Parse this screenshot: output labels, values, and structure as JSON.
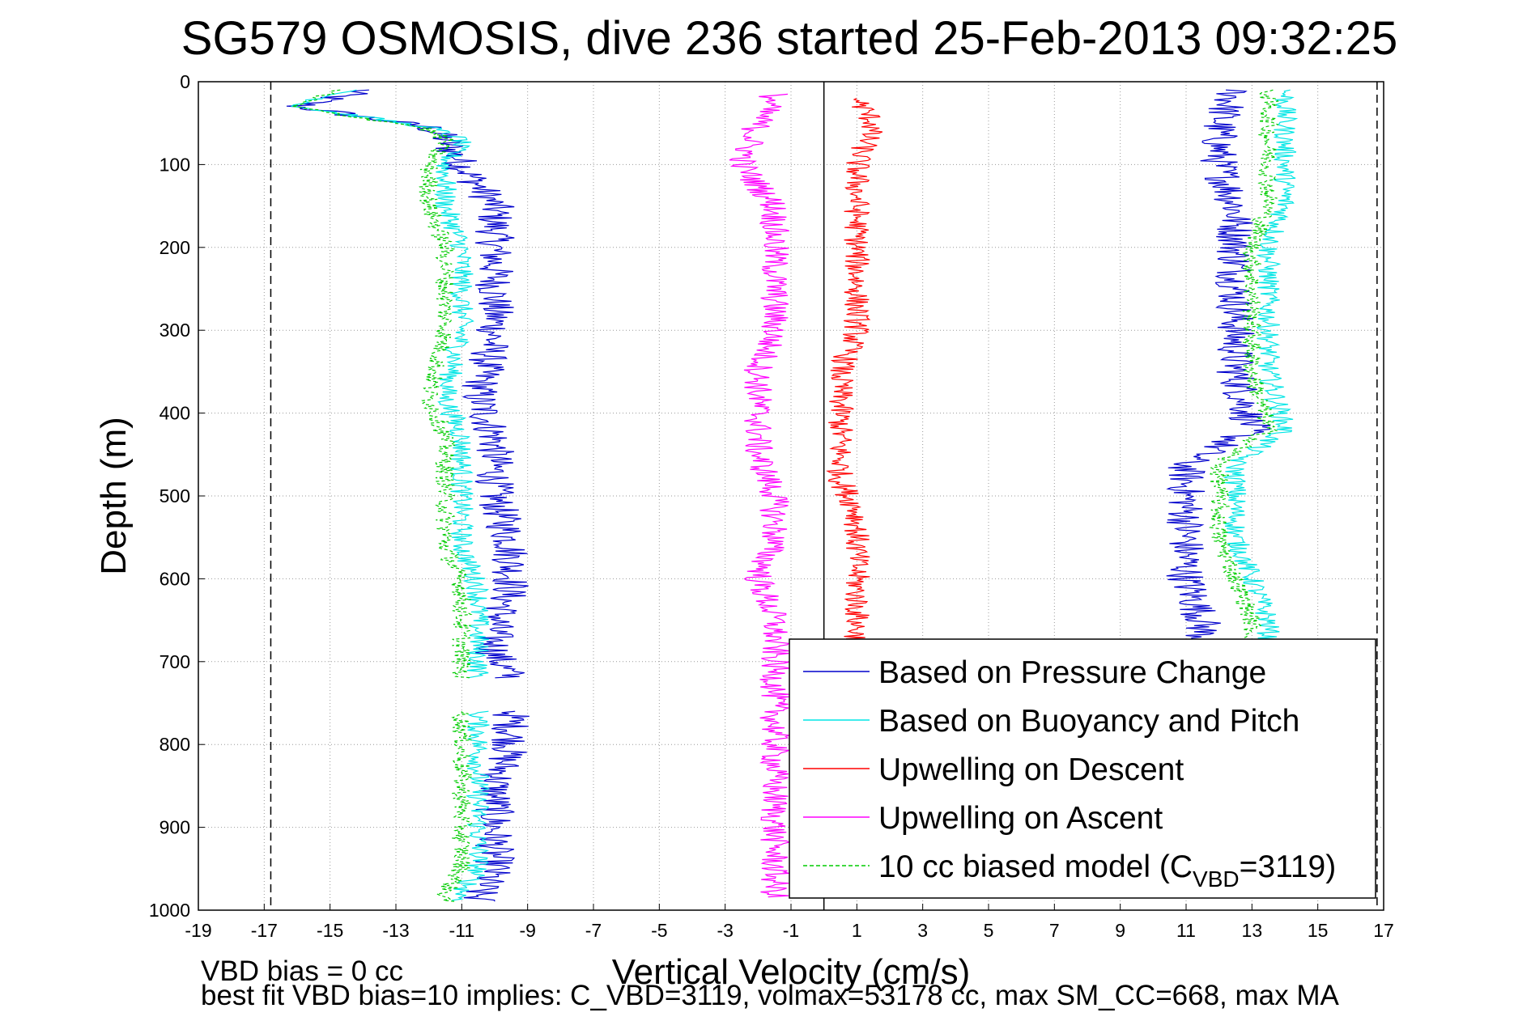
{
  "chart_data": {
    "type": "line",
    "title": "SG579 OSMOSIS, dive 236 started 25-Feb-2013 09:32:25",
    "xlabel": "Vertical Velocity (cm/s)",
    "ylabel": "Depth (m)",
    "xlim": [
      -19,
      17
    ],
    "ylim": [
      0,
      1000
    ],
    "y_reversed": true,
    "grid": true,
    "legend_position": "bottom-right",
    "x_ticks": [
      "-19",
      "-17",
      "-15",
      "-13",
      "-11",
      "-9",
      "-7",
      "-5",
      "-3",
      "-1",
      "1",
      "3",
      "5",
      "7",
      "9",
      "11",
      "13",
      "15",
      "17"
    ],
    "y_ticks": [
      "0",
      "100",
      "200",
      "300",
      "400",
      "500",
      "600",
      "700",
      "800",
      "900",
      "1000"
    ],
    "reference_lines": [
      {
        "x": -16.8,
        "style": "dashed",
        "color": "#000000"
      },
      {
        "x": 0,
        "style": "solid",
        "color": "#000000"
      },
      {
        "x": 16.8,
        "style": "dashed",
        "color": "#000000"
      }
    ],
    "series": [
      {
        "name": "Based on Pressure Change",
        "color": "#0000cc",
        "style": "solid",
        "noise": 0.6,
        "segments": [
          {
            "x": [
              -14,
              -16,
              -12,
              -11.5,
              -11,
              -10,
              -10,
              -10,
              -10,
              -10.5,
              -10,
              -10,
              -9.5,
              -9.5,
              -10,
              -10,
              -9.5
            ],
            "y": [
              10,
              30,
              55,
              70,
              100,
              150,
              200,
              250,
              300,
              380,
              430,
              500,
              560,
              610,
              660,
              690,
              720
            ]
          },
          {
            "x": [
              -9.5,
              -9.5,
              -10,
              -10,
              -10,
              -10.5,
              -10.5
            ],
            "y": [
              760,
              800,
              850,
              900,
              950,
              980,
              990
            ]
          },
          {
            "x": [
              12.5,
              12,
              12,
              12.5,
              12.5,
              12.5,
              12.5,
              12.5,
              12.5,
              13,
              11,
              11,
              11,
              11,
              11.5,
              11.5,
              11.5,
              11.5,
              11.5,
              11.5,
              11.5
            ],
            "y": [
              10,
              50,
              100,
              150,
              200,
              250,
              270,
              300,
              350,
              420,
              460,
              500,
              550,
              600,
              650,
              700,
              750,
              800,
              850,
              900,
              960
            ]
          }
        ]
      },
      {
        "name": "Based on Buoyancy and Pitch",
        "color": "#00e5e5",
        "style": "solid",
        "noise": 0.35,
        "segments": [
          {
            "x": [
              -14.5,
              -16,
              -12,
              -11,
              -11.5,
              -11.5,
              -11,
              -11,
              -11,
              -11.5,
              -11,
              -11,
              -11,
              -10.5,
              -10.5,
              -10.5,
              -10.5
            ],
            "y": [
              10,
              30,
              55,
              70,
              100,
              150,
              200,
              250,
              300,
              380,
              430,
              500,
              560,
              610,
              660,
              690,
              720
            ]
          },
          {
            "x": [
              -10.5,
              -10.5,
              -10.5,
              -10.5,
              -10.5,
              -11,
              -11
            ],
            "y": [
              760,
              800,
              850,
              900,
              950,
              980,
              990
            ]
          },
          {
            "x": [
              14,
              14,
              14,
              14,
              13.5,
              13.5,
              13.5,
              13.5,
              13.5,
              14,
              12.5,
              12.5,
              12.5,
              13,
              13.5,
              13.5,
              13.5,
              13.5,
              13.5,
              13.5,
              13.5
            ],
            "y": [
              10,
              50,
              100,
              150,
              200,
              250,
              270,
              300,
              350,
              420,
              460,
              500,
              550,
              600,
              650,
              700,
              750,
              800,
              850,
              900,
              960
            ]
          }
        ]
      },
      {
        "name": "Upwelling on Descent",
        "color": "#ff0000",
        "style": "solid",
        "noise": 0.4,
        "segments": [
          {
            "x": [
              1,
              1.5,
              1,
              1,
              1,
              1,
              1,
              0.5,
              0.5,
              0.5,
              0.5,
              1,
              1,
              1,
              1
            ],
            "y": [
              20,
              50,
              100,
              150,
              200,
              250,
              300,
              350,
              400,
              430,
              480,
              520,
              580,
              630,
              680
            ]
          }
        ]
      },
      {
        "name": "Upwelling on Ascent",
        "color": "#ff00ff",
        "style": "solid",
        "noise": 0.45,
        "segments": [
          {
            "x": [
              -1.5,
              -2,
              -2.5,
              -1.5,
              -1.5,
              -1.5,
              -1.5,
              -2,
              -2,
              -2,
              -1.5,
              -1.5,
              -2,
              -1.5,
              -1.5,
              -1.5,
              -1.5,
              -1.5,
              -1.5,
              -1.5,
              -1.5
            ],
            "y": [
              15,
              50,
              100,
              150,
              200,
              250,
              300,
              350,
              400,
              450,
              500,
              550,
              600,
              650,
              700,
              750,
              800,
              850,
              900,
              950,
              985
            ]
          }
        ]
      },
      {
        "name": "10 cc biased model (C_VBD=3119)",
        "color": "#00cc00",
        "style": "dashed",
        "noise": 0.3,
        "segments": [
          {
            "x": [
              -14.8,
              -16.2,
              -12.2,
              -11.5,
              -12,
              -12,
              -11.5,
              -11.5,
              -11.5,
              -12,
              -11.5,
              -11.5,
              -11.5,
              -11,
              -11,
              -11,
              -11
            ],
            "y": [
              10,
              30,
              55,
              70,
              100,
              150,
              200,
              250,
              300,
              380,
              430,
              500,
              560,
              610,
              660,
              690,
              720
            ]
          },
          {
            "x": [
              -11,
              -11,
              -11,
              -11,
              -11,
              -11.5,
              -11.5
            ],
            "y": [
              760,
              800,
              850,
              900,
              950,
              980,
              990
            ]
          },
          {
            "x": [
              13.5,
              13.5,
              13.5,
              13.5,
              13,
              13,
              13,
              13,
              13,
              13.5,
              12,
              12,
              12,
              12.5,
              13,
              13,
              13,
              13,
              13,
              13,
              13
            ],
            "y": [
              10,
              50,
              100,
              150,
              200,
              250,
              270,
              300,
              350,
              420,
              460,
              500,
              550,
              600,
              650,
              700,
              750,
              800,
              850,
              900,
              960
            ]
          }
        ]
      }
    ],
    "legend": {
      "entries": [
        {
          "label": "Based on Pressure Change",
          "color": "#0000cc",
          "style": "solid"
        },
        {
          "label": "Based on Buoyancy and Pitch",
          "color": "#00e5e5",
          "style": "solid"
        },
        {
          "label": "Upwelling on Descent",
          "color": "#ff0000",
          "style": "solid"
        },
        {
          "label": "Upwelling on Ascent",
          "color": "#ff00ff",
          "style": "solid"
        },
        {
          "label": "10 cc biased model (C",
          "sub": "VBD",
          "tail": "=3119)",
          "color": "#00cc00",
          "style": "dashed"
        }
      ]
    },
    "annotations": {
      "vbd_bias": "VBD bias = 0 cc",
      "best_fit": "best fit VBD bias=10 implies: C_VBD=3119, volmax=53178 cc, max SM_CC=668, max MA"
    }
  }
}
